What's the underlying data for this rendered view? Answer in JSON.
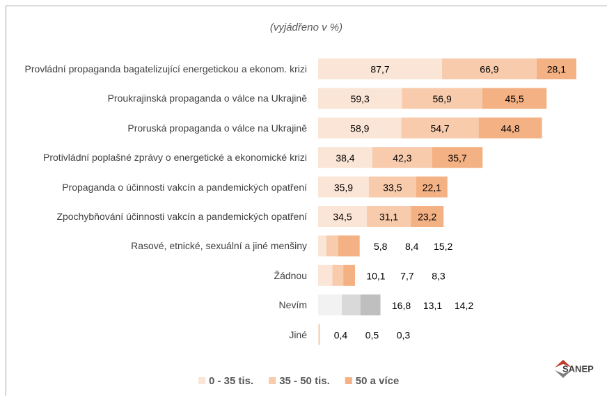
{
  "chart_data": {
    "type": "stacked_barh",
    "subtitle": "(vyjádřeno v %)",
    "categories": [
      "Provládní propaganda bagatelizující energetickou a ekonom. krizi",
      "Proukrajinská propaganda o válce na Ukrajině",
      "Proruská propaganda o válce na Ukrajině",
      "Protivládní poplašné zprávy o energetické a ekonomické krizi",
      "Propaganda o účinnosti vakcín a pandemických opatření",
      "Zpochybňování účinnosti vakcín a pandemických opatření",
      "Rasové, etnické, sexuální a jiné menšiny",
      "Žádnou",
      "Nevím",
      "Jiné"
    ],
    "series": [
      {
        "name": "0 - 35 tis.",
        "color": "#fbe5d6",
        "point_colors": {
          "8": "#f2f2f2"
        },
        "values": [
          87.7,
          59.3,
          58.9,
          38.4,
          35.9,
          34.5,
          5.8,
          10.1,
          16.8,
          0.4
        ],
        "value_labels": [
          "87,7",
          "59,3",
          "58,9",
          "38,4",
          "35,9",
          "34,5",
          "5,8",
          "10,1",
          "16,8",
          "0,4"
        ]
      },
      {
        "name": "35 - 50 tis.",
        "color": "#f8cbad",
        "point_colors": {
          "8": "#d9d9d9"
        },
        "values": [
          66.9,
          56.9,
          54.7,
          42.3,
          33.5,
          31.1,
          8.4,
          7.7,
          13.1,
          0.5
        ],
        "value_labels": [
          "66,9",
          "56,9",
          "54,7",
          "42,3",
          "33,5",
          "31,1",
          "8,4",
          "7,7",
          "13,1",
          "0,5"
        ]
      },
      {
        "name": "50 a více",
        "color": "#f4b183",
        "point_colors": {
          "8": "#bfbfbf"
        },
        "values": [
          28.1,
          45.5,
          44.8,
          35.7,
          22.1,
          23.2,
          15.2,
          8.3,
          14.2,
          0.3
        ],
        "value_labels": [
          "28,1",
          "45,5",
          "44,8",
          "35,7",
          "22,1",
          "23,2",
          "15,2",
          "8,3",
          "14,2",
          "0,3"
        ]
      }
    ],
    "logo": "SANEP"
  }
}
